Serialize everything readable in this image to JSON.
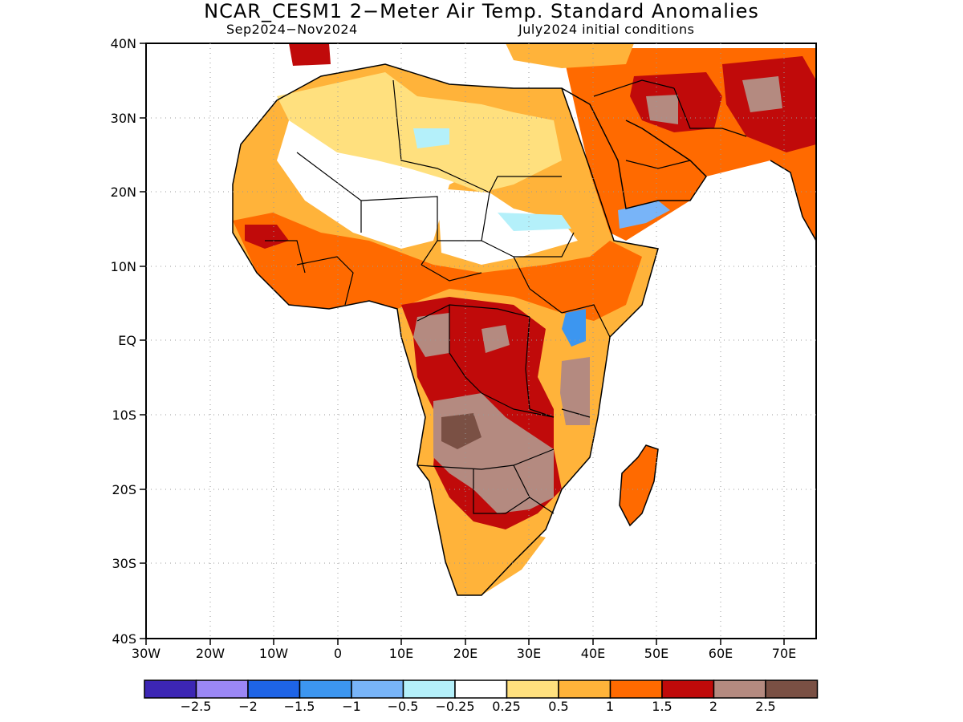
{
  "title": "NCAR_CESM1 2−Meter Air Temp. Standard Anomalies",
  "subtitle_left": "Sep2024−Nov2024",
  "subtitle_right": "July2024 initial conditions",
  "lat_labels": [
    "40N",
    "30N",
    "20N",
    "10N",
    "EQ",
    "10S",
    "20S",
    "30S",
    "40S"
  ],
  "lon_labels": [
    "30W",
    "20W",
    "10W",
    "0",
    "10E",
    "20E",
    "30E",
    "40E",
    "50E",
    "60E",
    "70E"
  ],
  "colorbar": {
    "colors": [
      "#3c26b4",
      "#9b87f5",
      "#1e64e6",
      "#3c96f0",
      "#78b4f8",
      "#b4f0fa",
      "#ffffff",
      "#ffe07e",
      "#ffb33a",
      "#ff6a00",
      "#c00a0a",
      "#b48a80",
      "#7a5044"
    ],
    "labels": [
      "−2.5",
      "−2",
      "−1.5",
      "−1",
      "−0.5",
      "−0.25",
      "0.25",
      "0.5",
      "1",
      "1.5",
      "2",
      "2.5"
    ]
  }
}
